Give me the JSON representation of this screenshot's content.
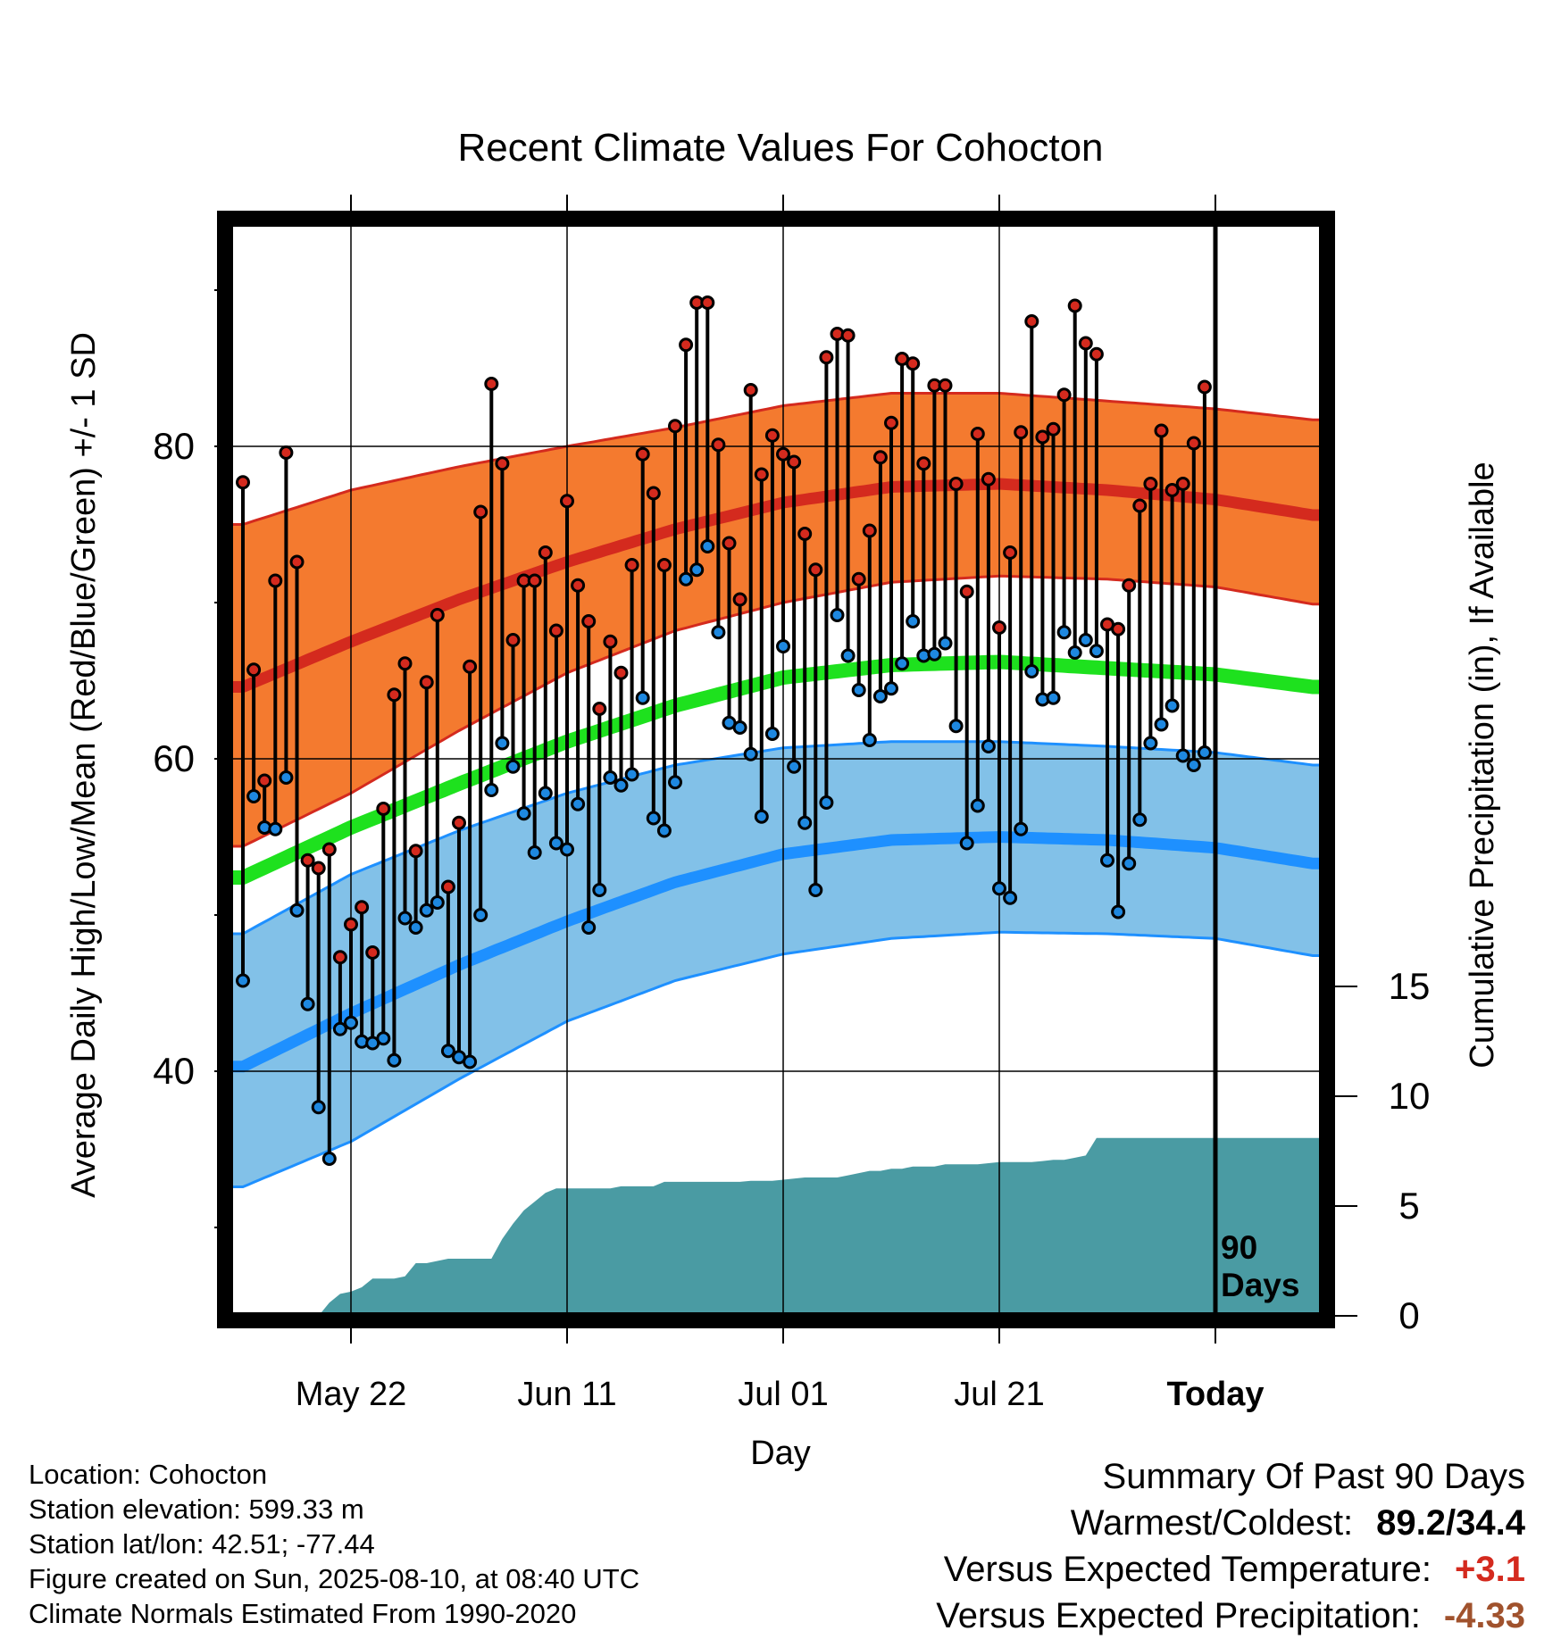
{
  "chart_data": {
    "type": "line",
    "title": "Recent Climate Values For Cohocton",
    "xlabel": "Day",
    "ylabel": "Average Daily High/Low/Mean (Red/Blue/Green) +/- 1 SD",
    "y2label": "Cumulative Precipitation (in), If Available",
    "x_range": [
      "2025-05-12",
      "2025-08-19"
    ],
    "x_ticks": [
      {
        "date": "2025-05-22",
        "label": "May 22"
      },
      {
        "date": "2025-06-11",
        "label": "Jun 11"
      },
      {
        "date": "2025-07-01",
        "label": "Jul 01"
      },
      {
        "date": "2025-07-21",
        "label": "Jul 21"
      },
      {
        "date": "2025-08-10",
        "label": "Today"
      }
    ],
    "ylim": [
      25,
      95
    ],
    "y_ticks": [
      40,
      60,
      80
    ],
    "y2lim": [
      0,
      36
    ],
    "y2_ticks": [
      0,
      5,
      10,
      15
    ],
    "today_label": "90 Days",
    "grid": true,
    "colors": {
      "high_band": "#f47a2f",
      "high_mean": "#d42a1e",
      "high_edge": "#d42a1e",
      "low_band": "#82c1e8",
      "low_mean": "#1e90ff",
      "low_edge": "#1e90ff",
      "avg_mean": "#1ee11e",
      "precip": "#4a9ba3",
      "high_point": "#d42a1e",
      "low_point": "#1e88e0",
      "frame": "#000000"
    },
    "normals": {
      "dates": [
        "2025-05-12",
        "2025-05-22",
        "2025-06-01",
        "2025-06-11",
        "2025-06-21",
        "2025-07-01",
        "2025-07-11",
        "2025-07-21",
        "2025-07-31",
        "2025-08-10",
        "2025-08-19"
      ],
      "high_mean": [
        64.6,
        67.5,
        70.2,
        72.6,
        74.7,
        76.4,
        77.4,
        77.6,
        77.2,
        76.6,
        75.6
      ],
      "high_sd_upper": [
        75.0,
        77.2,
        78.7,
        80.0,
        81.2,
        82.6,
        83.4,
        83.4,
        82.9,
        82.4,
        81.7
      ],
      "high_sd_lower": [
        54.4,
        57.8,
        61.8,
        65.5,
        68.2,
        70.0,
        71.3,
        71.7,
        71.5,
        71.0,
        69.9
      ],
      "low_mean": [
        40.3,
        43.7,
        46.8,
        49.6,
        52.1,
        53.9,
        54.8,
        55.0,
        54.8,
        54.3,
        53.3
      ],
      "low_sd_upper": [
        48.8,
        52.6,
        55.4,
        57.8,
        59.6,
        60.7,
        61.1,
        61.1,
        60.8,
        60.4,
        59.6
      ],
      "low_sd_lower": [
        32.6,
        35.5,
        39.5,
        43.2,
        45.8,
        47.5,
        48.5,
        48.9,
        48.8,
        48.5,
        47.4
      ],
      "avg_mean": [
        52.4,
        55.6,
        58.4,
        61.1,
        63.4,
        65.2,
        66.0,
        66.2,
        65.8,
        65.4,
        64.6
      ]
    },
    "daily": {
      "start_date": "2025-05-12",
      "high": [
        77.7,
        65.7,
        58.6,
        71.4,
        79.6,
        72.6,
        53.5,
        53.0,
        54.2,
        47.3,
        49.4,
        50.5,
        47.6,
        56.8,
        64.1,
        66.1,
        54.1,
        64.9,
        69.2,
        51.8,
        55.9,
        65.9,
        75.8,
        84.0,
        78.9,
        67.6,
        71.4,
        71.4,
        73.2,
        68.2,
        76.5,
        71.1,
        68.8,
        63.2,
        67.5,
        65.5,
        72.4,
        79.5,
        77.0,
        72.4,
        81.3,
        86.5,
        89.2,
        89.2,
        80.1,
        73.8,
        70.2,
        83.6,
        78.2,
        80.7,
        79.5,
        79.0,
        74.4,
        72.1,
        85.7,
        87.2,
        87.1,
        71.5,
        74.6,
        79.3,
        81.5,
        85.6,
        85.3,
        78.9,
        83.9,
        83.9,
        77.6,
        70.7,
        80.8,
        77.9,
        68.4,
        73.2,
        80.9,
        88.0,
        80.6,
        81.1,
        83.3,
        89.0,
        86.6,
        85.9,
        68.6,
        68.3,
        71.1,
        76.2,
        77.6,
        81.0,
        77.2,
        77.6,
        80.2,
        83.8
      ],
      "low": [
        45.8,
        57.6,
        55.6,
        55.5,
        58.8,
        50.3,
        44.3,
        37.7,
        34.4,
        42.7,
        43.1,
        41.9,
        41.8,
        42.1,
        40.7,
        49.8,
        49.2,
        50.3,
        50.8,
        41.3,
        40.9,
        40.6,
        50.0,
        58.0,
        61.0,
        59.5,
        56.5,
        54.0,
        57.8,
        54.6,
        54.2,
        57.1,
        49.2,
        51.6,
        58.8,
        58.3,
        59.0,
        63.9,
        56.2,
        55.4,
        58.5,
        71.5,
        72.1,
        73.6,
        68.1,
        62.3,
        62.0,
        60.3,
        56.3,
        61.6,
        67.2,
        59.5,
        55.9,
        51.6,
        57.2,
        69.2,
        66.6,
        64.4,
        61.2,
        64.0,
        64.5,
        66.1,
        68.8,
        66.6,
        66.7,
        67.4,
        62.1,
        54.6,
        57.0,
        60.8,
        51.7,
        51.1,
        55.5,
        65.6,
        63.8,
        63.9,
        68.1,
        66.8,
        67.6,
        66.9,
        53.5,
        50.2,
        53.3,
        56.1,
        61.0,
        62.2,
        63.4,
        60.2,
        59.6,
        60.4
      ]
    },
    "precip_cumulative": [
      0,
      0,
      0,
      0,
      0,
      0,
      0,
      0,
      0.6,
      1.0,
      1.1,
      1.3,
      1.7,
      1.7,
      1.7,
      1.8,
      2.4,
      2.4,
      2.5,
      2.6,
      2.6,
      2.6,
      2.6,
      2.6,
      3.5,
      4.2,
      4.8,
      5.2,
      5.6,
      5.8,
      5.8,
      5.8,
      5.8,
      5.8,
      5.8,
      5.9,
      5.9,
      5.9,
      5.9,
      6.1,
      6.1,
      6.1,
      6.1,
      6.1,
      6.1,
      6.1,
      6.1,
      6.15,
      6.15,
      6.15,
      6.2,
      6.25,
      6.3,
      6.3,
      6.3,
      6.3,
      6.4,
      6.5,
      6.6,
      6.6,
      6.7,
      6.7,
      6.8,
      6.8,
      6.8,
      6.9,
      6.9,
      6.9,
      6.9,
      6.95,
      7.0,
      7.0,
      7.0,
      7.0,
      7.05,
      7.1,
      7.1,
      7.2,
      7.3,
      8.1,
      8.1,
      8.1,
      8.1,
      8.1,
      8.1,
      8.1,
      8.1,
      8.1,
      8.1,
      8.1
    ],
    "summary": {
      "header": "Summary Of Past 90 Days",
      "warm_cold_label": "Warmest/Coldest:",
      "warm_cold_value": "89.2/34.4",
      "temp_label": "Versus Expected Temperature:",
      "temp_value": "+3.1",
      "temp_color": "#d42a1e",
      "precip_label": "Versus Expected Precipitation:",
      "precip_value": "-4.33",
      "precip_color": "#a0522d"
    }
  },
  "info": {
    "location": "Location: Cohocton",
    "elevation": "Station elevation: 599.33 m",
    "latlon": "Station lat/lon: 42.51; -77.44",
    "created": "Figure created on Sun, 2025-08-10, at 08:40 UTC",
    "normals": "Climate Normals Estimated From 1990-2020"
  }
}
